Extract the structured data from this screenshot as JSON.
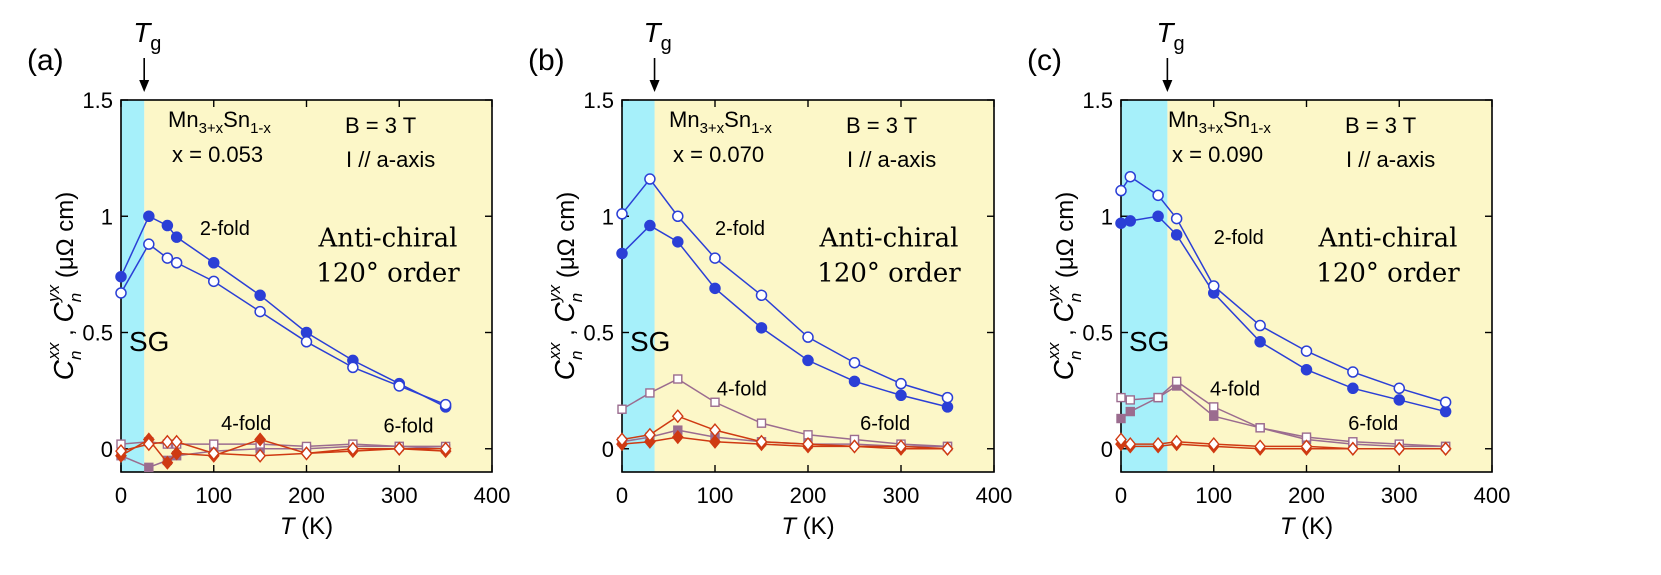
{
  "figure": {
    "colors": {
      "sg_region": "#A6F0FA",
      "order_region": "#FCF7C8",
      "two_fold": "#2B3FD6",
      "four_fold": "#9B6C8F",
      "six_fold": "#CF3A12",
      "fold2_text": "#0000EE",
      "fold4_text": "#7B3296",
      "fold6_text": "#CC0000",
      "phase_text": "#ED8A3A",
      "sg_text": "#5BA8E6"
    }
  },
  "chart_data": [
    {
      "type": "line",
      "panel_label": "(a)",
      "title": "",
      "xlabel_var": "T",
      "xlabel_unit": " (K)",
      "ylabel": "C_n^xx , C_n^yx (μΩ cm)",
      "xlim": [
        0,
        400
      ],
      "ylim": [
        -0.1,
        1.5
      ],
      "xticks": [
        "0",
        "100",
        "200",
        "300",
        "400"
      ],
      "yticks": [
        "0",
        "0.5",
        "1",
        "1.5"
      ],
      "ytick_values": [
        0,
        0.5,
        1,
        1.5
      ],
      "xtick_values": [
        0,
        100,
        200,
        300,
        400
      ],
      "tg": 25,
      "tg_label": {
        "main": "T",
        "sub": "g"
      },
      "composition": {
        "element1": "Mn",
        "sub1": "3+x",
        "element2": "Sn",
        "sub2": "1-x"
      },
      "x_value": "x = 0.053",
      "field": "B = 3 T",
      "current": "I // a-axis",
      "sg_label": "SG",
      "phase_line1": "Anti-chiral",
      "phase_line2": "120° order",
      "fold_labels": {
        "two": "2-fold",
        "four": "4-fold",
        "six": "6-fold"
      },
      "series": [
        {
          "name": "2-fold C^xx",
          "fold": "two",
          "marker": "circle",
          "filled": true,
          "x": [
            0,
            30,
            50,
            60,
            100,
            150,
            200,
            250,
            300,
            350
          ],
          "y": [
            0.74,
            1.0,
            0.96,
            0.91,
            0.8,
            0.66,
            0.5,
            0.38,
            0.28,
            0.18
          ]
        },
        {
          "name": "2-fold C^yx",
          "fold": "two",
          "marker": "circle",
          "filled": false,
          "x": [
            0,
            30,
            50,
            60,
            100,
            150,
            200,
            250,
            300,
            350
          ],
          "y": [
            0.67,
            0.88,
            0.82,
            0.8,
            0.72,
            0.59,
            0.46,
            0.35,
            0.27,
            0.19
          ]
        },
        {
          "name": "4-fold C^xx",
          "fold": "four",
          "marker": "square",
          "filled": true,
          "x": [
            0,
            30,
            50,
            60,
            100,
            150,
            200,
            250,
            300,
            350
          ],
          "y": [
            -0.03,
            -0.08,
            -0.05,
            -0.03,
            -0.01,
            0.0,
            0.0,
            0.01,
            0.01,
            0.0
          ]
        },
        {
          "name": "4-fold C^yx",
          "fold": "four",
          "marker": "square",
          "filled": false,
          "x": [
            0,
            30,
            50,
            60,
            100,
            150,
            200,
            250,
            300,
            350
          ],
          "y": [
            0.02,
            0.03,
            0.02,
            0.02,
            0.02,
            0.02,
            0.01,
            0.02,
            0.01,
            0.01
          ]
        },
        {
          "name": "6-fold C^xx",
          "fold": "six",
          "marker": "diamond",
          "filled": true,
          "x": [
            0,
            30,
            50,
            60,
            100,
            150,
            200,
            250,
            300,
            350
          ],
          "y": [
            -0.03,
            0.04,
            -0.06,
            -0.02,
            -0.03,
            0.04,
            -0.02,
            -0.01,
            0.0,
            -0.01
          ]
        },
        {
          "name": "6-fold C^yx",
          "fold": "six",
          "marker": "diamond",
          "filled": false,
          "x": [
            0,
            30,
            50,
            60,
            100,
            150,
            200,
            250,
            300,
            350
          ],
          "y": [
            -0.01,
            0.02,
            0.03,
            0.03,
            -0.02,
            -0.03,
            -0.02,
            0.0,
            0.0,
            0.0
          ]
        }
      ]
    },
    {
      "type": "line",
      "panel_label": "(b)",
      "title": "",
      "xlabel_var": "T",
      "xlabel_unit": " (K)",
      "ylabel": "C_n^xx , C_n^yx (μΩ cm)",
      "xlim": [
        0,
        400
      ],
      "ylim": [
        -0.1,
        1.5
      ],
      "xticks": [
        "0",
        "100",
        "200",
        "300",
        "400"
      ],
      "yticks": [
        "0",
        "0.5",
        "1",
        "1.5"
      ],
      "ytick_values": [
        0,
        0.5,
        1,
        1.5
      ],
      "xtick_values": [
        0,
        100,
        200,
        300,
        400
      ],
      "tg": 35,
      "tg_label": {
        "main": "T",
        "sub": "g"
      },
      "composition": {
        "element1": "Mn",
        "sub1": "3+x",
        "element2": "Sn",
        "sub2": "1-x"
      },
      "x_value": "x = 0.070",
      "field": "B = 3 T",
      "current": "I // a-axis",
      "sg_label": "SG",
      "phase_line1": "Anti-chiral",
      "phase_line2": "120° order",
      "fold_labels": {
        "two": "2-fold",
        "four": "4-fold",
        "six": "6-fold"
      },
      "series": [
        {
          "name": "2-fold C^xx",
          "fold": "two",
          "marker": "circle",
          "filled": true,
          "x": [
            0,
            30,
            60,
            100,
            150,
            200,
            250,
            300,
            350
          ],
          "y": [
            0.84,
            0.96,
            0.89,
            0.69,
            0.52,
            0.38,
            0.29,
            0.23,
            0.18
          ]
        },
        {
          "name": "2-fold C^yx",
          "fold": "two",
          "marker": "circle",
          "filled": false,
          "x": [
            0,
            30,
            60,
            100,
            150,
            200,
            250,
            300,
            350
          ],
          "y": [
            1.01,
            1.16,
            1.0,
            0.82,
            0.66,
            0.48,
            0.37,
            0.28,
            0.22
          ]
        },
        {
          "name": "4-fold C^xx",
          "fold": "four",
          "marker": "square",
          "filled": true,
          "x": [
            0,
            30,
            60,
            100,
            150,
            200,
            250,
            300,
            350
          ],
          "y": [
            0.03,
            0.05,
            0.08,
            0.05,
            0.03,
            0.02,
            0.02,
            0.01,
            0.01
          ]
        },
        {
          "name": "4-fold C^yx",
          "fold": "four",
          "marker": "square",
          "filled": false,
          "x": [
            0,
            30,
            60,
            100,
            150,
            200,
            250,
            300,
            350
          ],
          "y": [
            0.17,
            0.24,
            0.3,
            0.2,
            0.11,
            0.06,
            0.04,
            0.02,
            0.01
          ]
        },
        {
          "name": "6-fold C^xx",
          "fold": "six",
          "marker": "diamond",
          "filled": true,
          "x": [
            0,
            30,
            60,
            100,
            150,
            200,
            250,
            300,
            350
          ],
          "y": [
            0.02,
            0.03,
            0.05,
            0.03,
            0.02,
            0.01,
            0.01,
            0.0,
            0.0
          ]
        },
        {
          "name": "6-fold C^yx",
          "fold": "six",
          "marker": "diamond",
          "filled": false,
          "x": [
            0,
            30,
            60,
            100,
            150,
            200,
            250,
            300,
            350
          ],
          "y": [
            0.04,
            0.06,
            0.14,
            0.08,
            0.03,
            0.02,
            0.01,
            0.01,
            0.0
          ]
        }
      ]
    },
    {
      "type": "line",
      "panel_label": "(c)",
      "title": "",
      "xlabel_var": "T",
      "xlabel_unit": " (K)",
      "ylabel": "C_n^xx , C_n^yx (μΩ cm)",
      "xlim": [
        0,
        400
      ],
      "ylim": [
        -0.1,
        1.5
      ],
      "xticks": [
        "0",
        "100",
        "200",
        "300",
        "400"
      ],
      "yticks": [
        "0",
        "0.5",
        "1",
        "1.5"
      ],
      "ytick_values": [
        0,
        0.5,
        1,
        1.5
      ],
      "xtick_values": [
        0,
        100,
        200,
        300,
        400
      ],
      "tg": 50,
      "tg_label": {
        "main": "T",
        "sub": "g"
      },
      "composition": {
        "element1": "Mn",
        "sub1": "3+x",
        "element2": "Sn",
        "sub2": "1-x"
      },
      "x_value": "x = 0.090",
      "field": "B = 3 T",
      "current": "I // a-axis",
      "sg_label": "SG",
      "phase_line1": "Anti-chiral",
      "phase_line2": "120° order",
      "fold_labels": {
        "two": "2-fold",
        "four": "4-fold",
        "six": "6-fold"
      },
      "series": [
        {
          "name": "2-fold C^xx",
          "fold": "two",
          "marker": "circle",
          "filled": true,
          "x": [
            0,
            10,
            40,
            60,
            100,
            150,
            200,
            250,
            300,
            350
          ],
          "y": [
            0.97,
            0.98,
            1.0,
            0.92,
            0.67,
            0.46,
            0.34,
            0.26,
            0.21,
            0.16
          ]
        },
        {
          "name": "2-fold C^yx",
          "fold": "two",
          "marker": "circle",
          "filled": false,
          "x": [
            0,
            10,
            40,
            60,
            100,
            150,
            200,
            250,
            300,
            350
          ],
          "y": [
            1.11,
            1.17,
            1.09,
            0.99,
            0.7,
            0.53,
            0.42,
            0.33,
            0.26,
            0.2
          ]
        },
        {
          "name": "4-fold C^xx",
          "fold": "four",
          "marker": "square",
          "filled": true,
          "x": [
            0,
            10,
            40,
            60,
            100,
            150,
            200,
            250,
            300,
            350
          ],
          "y": [
            0.13,
            0.16,
            0.22,
            0.27,
            0.14,
            0.09,
            0.04,
            0.02,
            0.01,
            0.01
          ]
        },
        {
          "name": "4-fold C^yx",
          "fold": "four",
          "marker": "square",
          "filled": false,
          "x": [
            0,
            10,
            40,
            60,
            100,
            150,
            200,
            250,
            300,
            350
          ],
          "y": [
            0.22,
            0.21,
            0.22,
            0.29,
            0.18,
            0.09,
            0.05,
            0.03,
            0.02,
            0.01
          ]
        },
        {
          "name": "6-fold C^xx",
          "fold": "six",
          "marker": "diamond",
          "filled": true,
          "x": [
            0,
            10,
            40,
            60,
            100,
            150,
            200,
            250,
            300,
            350
          ],
          "y": [
            0.02,
            0.01,
            0.01,
            0.02,
            0.01,
            0.0,
            0.0,
            0.0,
            0.0,
            0.0
          ]
        },
        {
          "name": "6-fold C^yx",
          "fold": "six",
          "marker": "diamond",
          "filled": false,
          "x": [
            0,
            10,
            40,
            60,
            100,
            150,
            200,
            250,
            300,
            350
          ],
          "y": [
            0.04,
            0.02,
            0.02,
            0.03,
            0.02,
            0.01,
            0.01,
            0.0,
            0.0,
            0.0
          ]
        }
      ]
    }
  ]
}
